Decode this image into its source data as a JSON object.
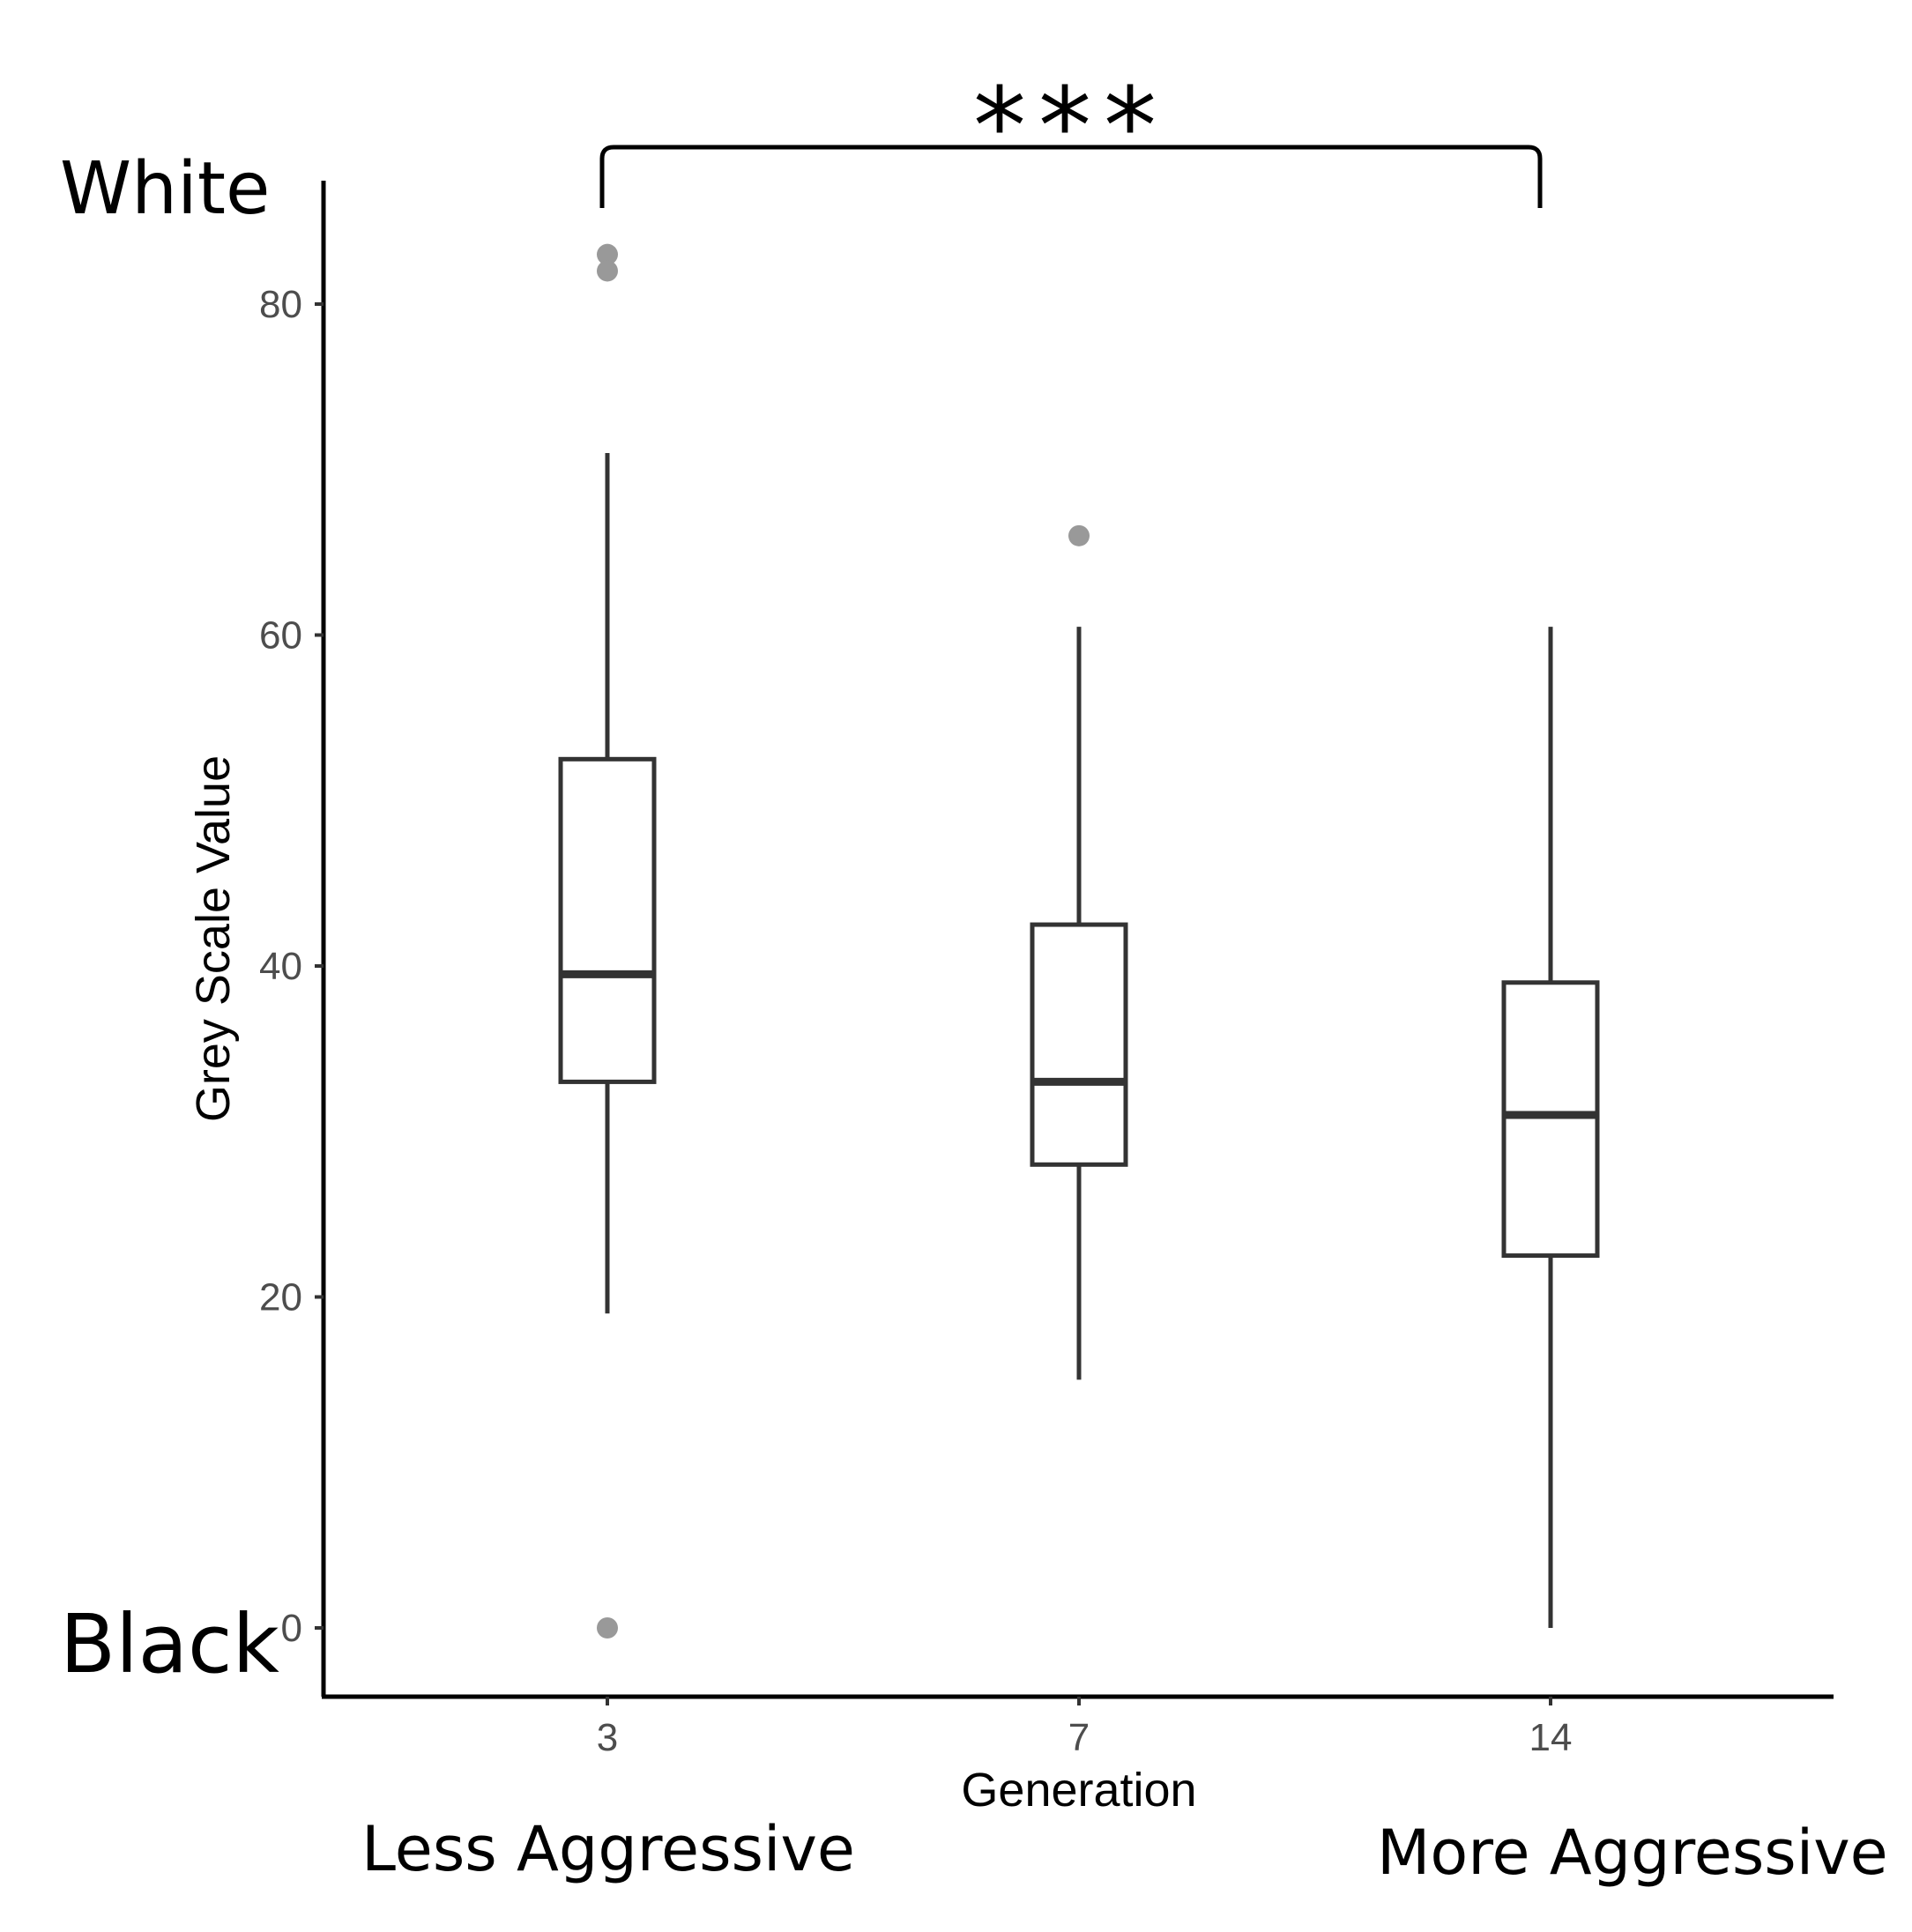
{
  "chart_data": {
    "type": "box",
    "xlabel": "Generation",
    "ylabel": "Grey Scale Value",
    "categories": [
      "3",
      "7",
      "14"
    ],
    "ylim": [
      -4,
      87
    ],
    "yticks": [
      0,
      20,
      40,
      60,
      80
    ],
    "grid": false,
    "boxes": [
      {
        "category": "3",
        "whisker_low": 19,
        "q1": 33,
        "median": 39.5,
        "q3": 52.5,
        "whisker_high": 71,
        "outliers": [
          83,
          82,
          0
        ]
      },
      {
        "category": "7",
        "whisker_low": 15,
        "q1": 28,
        "median": 33,
        "q3": 42.5,
        "whisker_high": 60.5,
        "outliers": [
          66
        ]
      },
      {
        "category": "14",
        "whisker_low": 0,
        "q1": 22.5,
        "median": 31,
        "q3": 39,
        "whisker_high": 60.5,
        "outliers": []
      }
    ],
    "annotations": {
      "top_label": "White",
      "bottom_label": "Black",
      "left_label": "Less Aggressive",
      "right_label": "More Aggressive",
      "significance": "***",
      "significance_between": [
        "3",
        "14"
      ]
    },
    "colors": {
      "box_stroke": "#333333",
      "outlier": "#999999",
      "axis": "#000000"
    }
  }
}
